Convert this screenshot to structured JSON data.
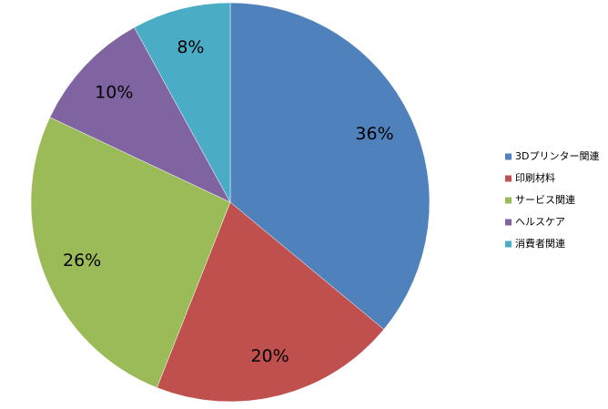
{
  "chart_data": {
    "type": "pie",
    "categories": [
      "3Dプリンター関連",
      "印刷材料",
      "サービス関連",
      "ヘルスケア",
      "消費者関連"
    ],
    "values": [
      36,
      20,
      26,
      10,
      8
    ],
    "value_labels": [
      "36%",
      "20%",
      "26%",
      "10%",
      "8%"
    ],
    "colors": [
      "#4f81bd",
      "#c0504d",
      "#9bbb59",
      "#8064a2",
      "#4bacc6"
    ],
    "legend": "right"
  }
}
